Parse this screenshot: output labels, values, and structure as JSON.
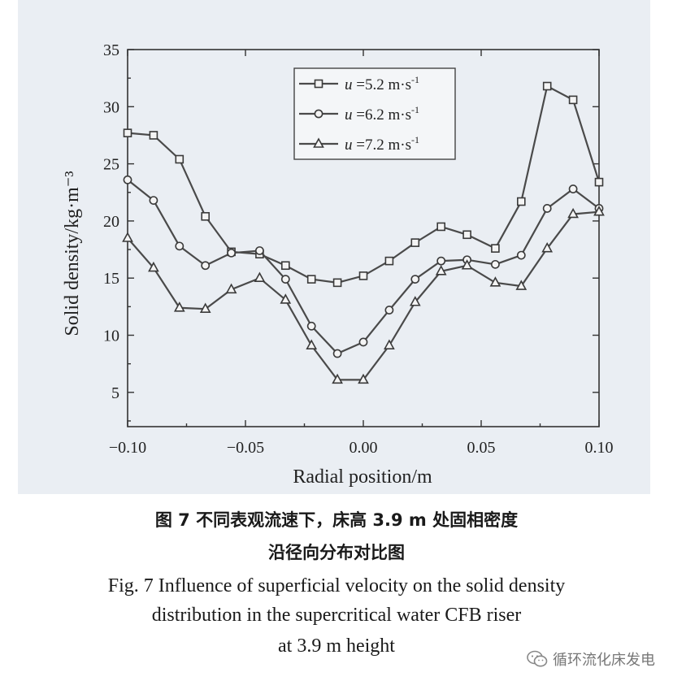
{
  "chart_data": {
    "type": "line",
    "xlabel": "Radial position/m",
    "ylabel": "Solid density/kg·m⁻³",
    "xlim": [
      -0.1,
      0.1
    ],
    "ylim": [
      2,
      35
    ],
    "x_ticks": [
      "−0.10",
      "−0.05",
      "0.00",
      "0.05",
      "0.10"
    ],
    "x_tick_values": [
      -0.1,
      -0.05,
      0.0,
      0.05,
      0.1
    ],
    "y_ticks": [
      "5",
      "10",
      "15",
      "20",
      "25",
      "30",
      "35"
    ],
    "y_tick_values": [
      5,
      10,
      15,
      20,
      25,
      30,
      35
    ],
    "legend_position": "top-right",
    "x": [
      -0.1,
      -0.089,
      -0.078,
      -0.067,
      -0.056,
      -0.044,
      -0.033,
      -0.022,
      -0.011,
      0.0,
      0.011,
      0.022,
      0.033,
      0.044,
      0.056,
      0.067,
      0.078,
      0.089,
      0.1
    ],
    "series": [
      {
        "name": "u =5.2 m·s⁻¹",
        "name_var": "u",
        "name_rest": " =5.2 m·s",
        "name_sup": "-1",
        "marker": "square",
        "values": [
          27.7,
          27.5,
          25.4,
          20.4,
          17.3,
          17.1,
          16.1,
          14.9,
          14.6,
          15.2,
          16.5,
          18.1,
          19.5,
          18.8,
          17.6,
          21.7,
          31.8,
          30.6,
          23.4
        ]
      },
      {
        "name": "u =6.2 m·s⁻¹",
        "name_var": "u",
        "name_rest": " =6.2 m·s",
        "name_sup": "-1",
        "marker": "circle",
        "values": [
          23.6,
          21.8,
          17.8,
          16.1,
          17.2,
          17.4,
          14.9,
          10.8,
          8.4,
          9.4,
          12.2,
          14.9,
          16.5,
          16.6,
          16.2,
          17.0,
          21.1,
          22.8,
          21.1
        ]
      },
      {
        "name": "u =7.2 m·s⁻¹",
        "name_var": "u",
        "name_rest": " =7.2 m·s",
        "name_sup": "-1",
        "marker": "triangle",
        "values": [
          18.5,
          15.9,
          12.4,
          12.3,
          14.0,
          15.0,
          13.1,
          9.1,
          6.1,
          6.1,
          9.1,
          12.9,
          15.6,
          16.1,
          14.6,
          14.3,
          17.6,
          20.6,
          20.8
        ]
      }
    ]
  },
  "caption": {
    "cn_line1": "图 7  不同表观流速下，床高 3.9 m 处固相密度",
    "cn_line2": "沿径向分布对比图",
    "en_line1": "Fig. 7  Influence of superficial velocity on the solid density",
    "en_line2": "distribution in the supercritical water CFB riser",
    "en_line3": "at 3.9 m height"
  },
  "watermark": {
    "text": "循环流化床发电",
    "icon": "wechat-icon"
  }
}
